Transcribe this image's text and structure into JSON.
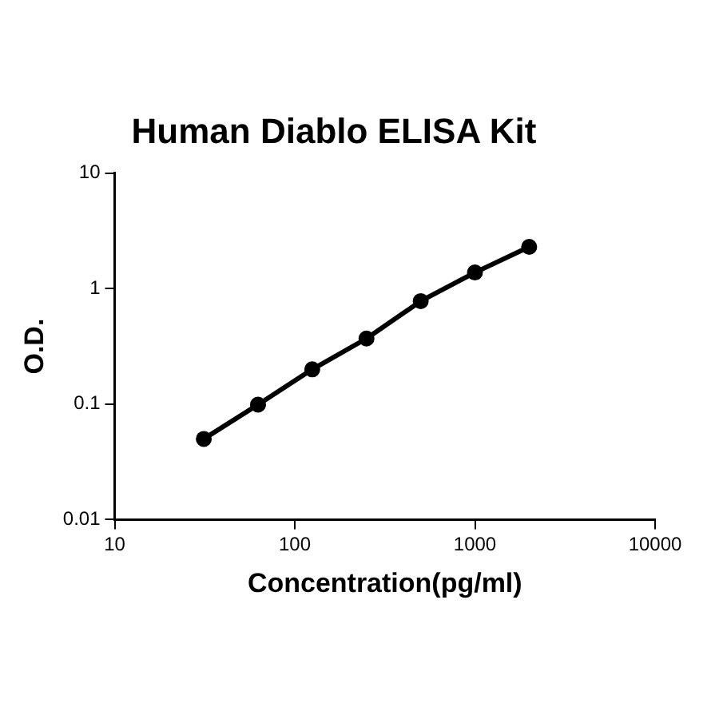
{
  "chart_data": {
    "type": "line",
    "title": "Human Diablo ELISA Kit",
    "xlabel": "Concentration(pg/ml)",
    "ylabel": "O.D.",
    "x": [
      31.25,
      62.5,
      125,
      250,
      500,
      1000,
      2000
    ],
    "series": [
      {
        "color": "#000000",
        "values": [
          0.05,
          0.099,
          0.2,
          0.37,
          0.78,
          1.38,
          2.3
        ]
      }
    ],
    "log": "xy",
    "xlim": [
      10,
      10000
    ],
    "xticks": [
      10,
      100,
      1000,
      10000
    ],
    "ylim": [
      0.01,
      10
    ],
    "yticks": [
      0.01,
      0.1,
      1,
      10
    ],
    "grid": false,
    "legend": false,
    "marker": "circle",
    "line_style": "solid"
  }
}
